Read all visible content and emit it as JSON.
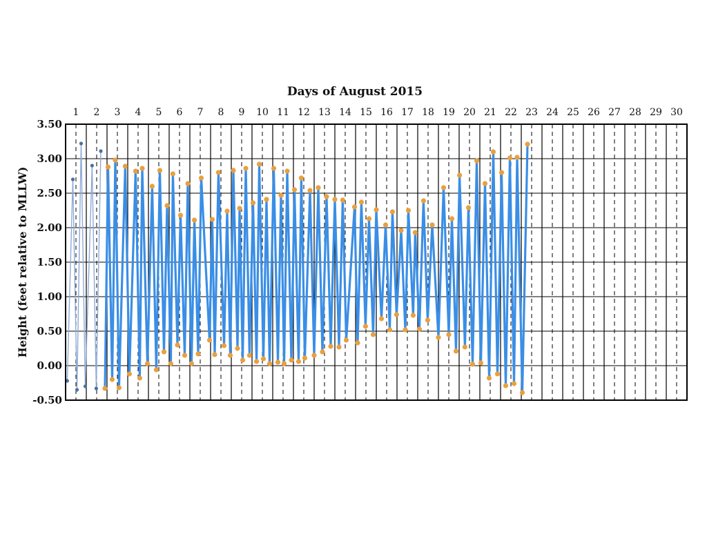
{
  "chart_data": {
    "type": "line",
    "title": "Days of August 2015",
    "xlabel": "",
    "ylabel": "Height (feet relative to MLLW)",
    "x_range": [
      1,
      31
    ],
    "ylim": [
      -0.5,
      3.5
    ],
    "y_ticks": [
      "3.50",
      "3.00",
      "2.50",
      "2.00",
      "1.50",
      "1.00",
      "0.50",
      "0.00",
      "-0.50"
    ],
    "y_tick_values": [
      3.5,
      3.0,
      2.5,
      2.0,
      1.5,
      1.0,
      0.5,
      0.0,
      -0.5
    ],
    "day_labels": [
      "1",
      "2",
      "3",
      "4",
      "5",
      "6",
      "7",
      "8",
      "9",
      "10",
      "11",
      "12",
      "13",
      "14",
      "15",
      "16",
      "17",
      "18",
      "19",
      "20",
      "21",
      "22",
      "23",
      "24",
      "25",
      "26",
      "27",
      "28",
      "29",
      "30"
    ],
    "grid": true,
    "legend": "none",
    "colors": {
      "sparse_line": "#8ea9d6",
      "sparse_marker": "#4a6fa5",
      "main_line": "#3a8ee6",
      "main_marker": "#e8a040",
      "grid": "#000000"
    },
    "series": [
      {
        "values": [
          [
            1.08,
            -0.22
          ],
          [
            1.35,
            2.7
          ],
          [
            1.55,
            -0.35
          ],
          [
            1.75,
            3.22
          ],
          [
            1.95,
            -0.3
          ],
          [
            2.28,
            2.9
          ],
          [
            2.48,
            -0.33
          ],
          [
            2.7,
            3.11
          ]
        ]
      },
      {
        "values": [
          [
            2.9,
            -0.33
          ],
          [
            3.05,
            2.88
          ],
          [
            3.25,
            -0.2
          ],
          [
            3.4,
            2.98
          ],
          [
            3.58,
            -0.32
          ],
          [
            3.88,
            2.89
          ],
          [
            4.08,
            -0.12
          ],
          [
            4.38,
            2.82
          ],
          [
            4.58,
            -0.18
          ],
          [
            4.7,
            2.86
          ],
          [
            4.95,
            0.03
          ],
          [
            5.18,
            2.6
          ],
          [
            5.38,
            -0.06
          ],
          [
            5.55,
            2.83
          ],
          [
            5.75,
            0.2
          ],
          [
            5.9,
            2.32
          ],
          [
            6.08,
            0.03
          ],
          [
            6.18,
            2.78
          ],
          [
            6.4,
            0.3
          ],
          [
            6.55,
            2.18
          ],
          [
            6.75,
            0.15
          ],
          [
            6.9,
            2.64
          ],
          [
            7.08,
            0.03
          ],
          [
            7.22,
            2.11
          ],
          [
            7.4,
            0.17
          ],
          [
            7.55,
            2.72
          ],
          [
            7.95,
            0.37
          ],
          [
            8.08,
            2.12
          ],
          [
            8.2,
            0.16
          ],
          [
            8.38,
            2.8
          ],
          [
            8.65,
            0.29
          ],
          [
            8.8,
            2.24
          ],
          [
            8.95,
            0.15
          ],
          [
            9.1,
            2.83
          ],
          [
            9.3,
            0.25
          ],
          [
            9.4,
            2.28
          ],
          [
            9.55,
            0.08
          ],
          [
            9.7,
            2.86
          ],
          [
            9.88,
            0.15
          ],
          [
            10.05,
            2.36
          ],
          [
            10.22,
            0.06
          ],
          [
            10.35,
            2.92
          ],
          [
            10.55,
            0.1
          ],
          [
            10.7,
            2.41
          ],
          [
            10.85,
            0.03
          ],
          [
            11.05,
            2.86
          ],
          [
            11.25,
            0.05
          ],
          [
            11.4,
            2.47
          ],
          [
            11.55,
            0.03
          ],
          [
            11.7,
            2.82
          ],
          [
            11.9,
            0.08
          ],
          [
            12.05,
            2.55
          ],
          [
            12.25,
            0.06
          ],
          [
            12.38,
            2.72
          ],
          [
            12.55,
            0.11
          ],
          [
            12.8,
            2.54
          ],
          [
            13.0,
            0.15
          ],
          [
            13.2,
            2.58
          ],
          [
            13.4,
            0.2
          ],
          [
            13.6,
            2.45
          ],
          [
            13.8,
            0.28
          ],
          [
            14.0,
            2.41
          ],
          [
            14.2,
            0.27
          ],
          [
            14.38,
            2.4
          ],
          [
            14.55,
            0.37
          ],
          [
            14.95,
            2.3
          ],
          [
            15.1,
            0.33
          ],
          [
            15.28,
            2.37
          ],
          [
            15.48,
            0.57
          ],
          [
            15.65,
            2.13
          ],
          [
            15.85,
            0.45
          ],
          [
            16.0,
            2.26
          ],
          [
            16.25,
            0.68
          ],
          [
            16.45,
            2.04
          ],
          [
            16.65,
            0.52
          ],
          [
            16.78,
            2.23
          ],
          [
            16.98,
            0.74
          ],
          [
            17.2,
            1.96
          ],
          [
            17.4,
            0.52
          ],
          [
            17.55,
            2.25
          ],
          [
            17.78,
            0.73
          ],
          [
            17.88,
            1.93
          ],
          [
            18.08,
            0.53
          ],
          [
            18.28,
            2.39
          ],
          [
            18.48,
            0.66
          ],
          [
            18.7,
            2.04
          ],
          [
            19.0,
            0.41
          ],
          [
            19.25,
            2.58
          ],
          [
            19.5,
            0.45
          ],
          [
            19.65,
            2.13
          ],
          [
            19.85,
            0.21
          ],
          [
            20.02,
            2.76
          ],
          [
            20.28,
            0.27
          ],
          [
            20.45,
            2.29
          ],
          [
            20.65,
            0.02
          ],
          [
            20.85,
            2.97
          ],
          [
            21.05,
            0.04
          ],
          [
            21.25,
            2.64
          ],
          [
            21.45,
            -0.18
          ],
          [
            21.65,
            3.1
          ],
          [
            21.85,
            -0.12
          ],
          [
            22.05,
            2.8
          ],
          [
            22.25,
            -0.29
          ],
          [
            22.45,
            3.01
          ],
          [
            22.65,
            -0.26
          ],
          [
            22.8,
            3.02
          ],
          [
            23.05,
            -0.39
          ],
          [
            23.3,
            3.21
          ]
        ]
      }
    ]
  }
}
